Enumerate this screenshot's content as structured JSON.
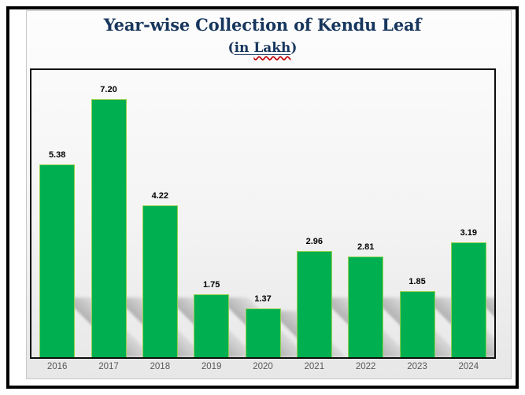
{
  "header": {
    "title": "Year-wise Collection of Kendu Leaf",
    "subtitle": {
      "open": "(",
      "word1": "in ",
      "word2": "Lakh",
      "close": ")"
    }
  },
  "chart_data": {
    "type": "bar",
    "title": "Year-wise Collection of Kendu Leaf",
    "subtitle": "(in Lakh)",
    "categories": [
      "2016",
      "2017",
      "2018",
      "2019",
      "2020",
      "2021",
      "2022",
      "2023",
      "2024"
    ],
    "values": [
      5.38,
      7.2,
      4.22,
      1.75,
      1.37,
      2.96,
      2.81,
      1.85,
      3.19
    ],
    "data_labels": [
      "5.38",
      "7.20",
      "4.22",
      "1.75",
      "1.37",
      "2.96",
      "2.81",
      "1.85",
      "3.19"
    ],
    "xlabel": "",
    "ylabel": "",
    "ylim": [
      0,
      8
    ],
    "grid": false,
    "legend": false,
    "y_axis_visible": false,
    "colors": {
      "bar_fill": "#00b050",
      "bar_border": "#92d050",
      "title_text": "#17365d",
      "data_label_text": "#000000",
      "axis_label_text": "#595959",
      "plot_border": "#0d0d0d",
      "misspell_underline": "#c00000"
    }
  }
}
